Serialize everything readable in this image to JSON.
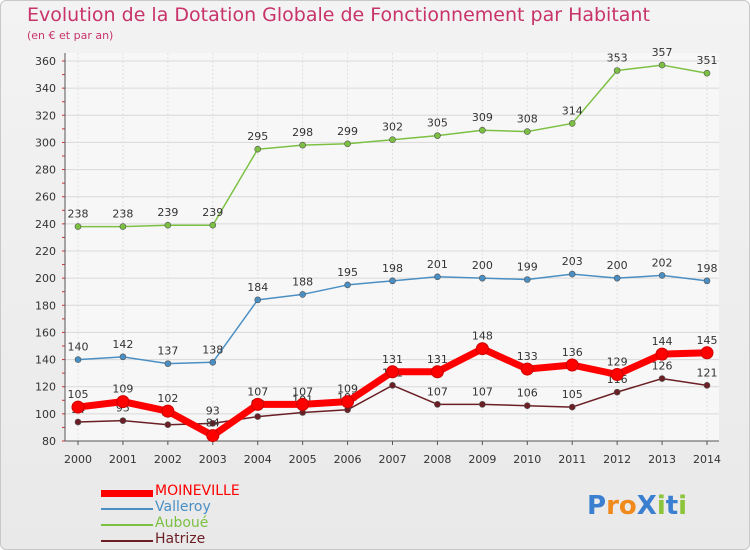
{
  "chart_data": {
    "type": "line",
    "title": "Evolution de la Dotation Globale de Fonctionnement par Habitant",
    "subtitle": "(en € et par an)",
    "categories": [
      "2000",
      "2001",
      "2002",
      "2003",
      "2004",
      "2005",
      "2006",
      "2007",
      "2008",
      "2009",
      "2010",
      "2011",
      "2012",
      "2013",
      "2014"
    ],
    "ylim": [
      80,
      360
    ],
    "yticks": [
      80,
      100,
      120,
      140,
      160,
      180,
      200,
      220,
      240,
      260,
      280,
      300,
      320,
      340,
      360
    ],
    "grid": true,
    "series": [
      {
        "name": "Auboué",
        "color": "#7cc043",
        "values": [
          238,
          238,
          239,
          239,
          295,
          298,
          299,
          302,
          305,
          309,
          308,
          314,
          353,
          357,
          351
        ]
      },
      {
        "name": "Valleroy",
        "color": "#4a8fc4",
        "values": [
          140,
          142,
          137,
          138,
          184,
          188,
          195,
          198,
          201,
          200,
          199,
          203,
          200,
          202,
          198
        ]
      },
      {
        "name": "Hatrize",
        "color": "#6b1f24",
        "values": [
          94,
          95,
          92,
          93,
          98,
          101,
          103,
          121,
          107,
          107,
          106,
          105,
          116,
          126,
          121
        ]
      },
      {
        "name": "MOINEVILLE",
        "color": "#ff0000",
        "values": [
          105,
          109,
          102,
          84,
          107,
          107,
          109,
          131,
          131,
          148,
          133,
          136,
          129,
          144,
          145
        ]
      }
    ]
  },
  "legend": [
    {
      "name": "MOINEVILLE",
      "color": "#ff0000",
      "weight": "thick"
    },
    {
      "name": "Valleroy",
      "color": "#4a8fc4",
      "weight": "thin"
    },
    {
      "name": "Auboué",
      "color": "#7cc043",
      "weight": "thin"
    },
    {
      "name": "Hatrize",
      "color": "#6b1f24",
      "weight": "thin"
    }
  ],
  "logo": {
    "text": "ProXiti",
    "letters": [
      "P",
      "r",
      "o",
      "X",
      "i",
      "t",
      "i"
    ],
    "colors": [
      "#3a7fd0",
      "#f08a1c",
      "#f08a1c",
      "#3a7fd0",
      "#8cc43a",
      "#3a7fd0",
      "#8cc43a"
    ]
  }
}
